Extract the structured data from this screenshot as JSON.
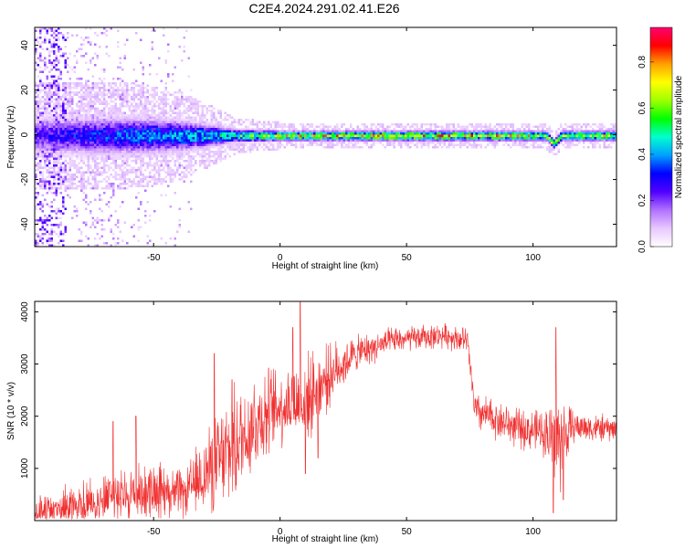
{
  "title": "C2E4.2024.291.02.41.E26",
  "chart_data": [
    {
      "type": "heatmap",
      "xlabel": "Height of straight line (km)",
      "ylabel": "Frequency (Hz)",
      "xlim": [
        -97,
        133
      ],
      "ylim": [
        -50,
        48
      ],
      "xticks": [
        -50,
        0,
        50,
        100
      ],
      "yticks": [
        -40,
        -20,
        0,
        20,
        40
      ],
      "ridge": {
        "center_freq_hz": 0,
        "spread_hz": [
          {
            "x": -97,
            "hz": 6
          },
          {
            "x": -60,
            "hz": 6
          },
          {
            "x": -40,
            "hz": 5
          },
          {
            "x": -25,
            "hz": 3
          },
          {
            "x": -18,
            "hz": 2
          },
          {
            "x": 0,
            "hz": 1.5
          },
          {
            "x": 100,
            "hz": 1.5
          },
          {
            "x": 133,
            "hz": 1.5
          }
        ],
        "peak_amplitude": [
          {
            "x": -97,
            "a": 0.3
          },
          {
            "x": -60,
            "a": 0.45
          },
          {
            "x": -40,
            "a": 0.5
          },
          {
            "x": -20,
            "a": 0.6
          },
          {
            "x": 0,
            "a": 0.85
          },
          {
            "x": 50,
            "a": 0.9
          },
          {
            "x": 100,
            "a": 0.85
          },
          {
            "x": 133,
            "a": 0.8
          }
        ],
        "disturbance": {
          "x": 108,
          "hz": -6
        }
      },
      "colorbar": {
        "label": "Normalized spectral amplitude",
        "range": [
          0,
          0.95
        ],
        "ticks": [
          "0.0",
          "0.2",
          "0.4",
          "0.6",
          "0.8"
        ],
        "tick_values": [
          0.0,
          0.2,
          0.4,
          0.6,
          0.8
        ],
        "colors": [
          "#ffffff",
          "#e8c8ff",
          "#b070ff",
          "#5000ff",
          "#0000ff",
          "#00a0ff",
          "#00ffd0",
          "#00ff00",
          "#a0ff00",
          "#ffff00",
          "#ffa000",
          "#ff0000",
          "#ff0070"
        ]
      }
    },
    {
      "type": "line",
      "xlabel": "Height of straight line (km)",
      "ylabel": "SNR (10 * v/v)",
      "xlim": [
        -97,
        133
      ],
      "ylim": [
        0,
        4200
      ],
      "xticks": [
        -50,
        0,
        50,
        100
      ],
      "yticks": [
        1000,
        2000,
        3000,
        4000
      ],
      "color": "#f03030",
      "series": [
        {
          "envelope": [
            {
              "x": -97,
              "base": 150,
              "amp": 400
            },
            {
              "x": -75,
              "base": 350,
              "amp": 600
            },
            {
              "x": -50,
              "base": 600,
              "amp": 650
            },
            {
              "x": -38,
              "base": 500,
              "amp": 550
            },
            {
              "x": -30,
              "base": 900,
              "amp": 900
            },
            {
              "x": -20,
              "base": 1300,
              "amp": 1300
            },
            {
              "x": -10,
              "base": 1900,
              "amp": 1200
            },
            {
              "x": 0,
              "base": 2200,
              "amp": 900
            },
            {
              "x": 10,
              "base": 2300,
              "amp": 1000
            },
            {
              "x": 20,
              "base": 2800,
              "amp": 700
            },
            {
              "x": 30,
              "base": 3200,
              "amp": 400
            },
            {
              "x": 45,
              "base": 3450,
              "amp": 300
            },
            {
              "x": 65,
              "base": 3550,
              "amp": 280
            },
            {
              "x": 74,
              "base": 3450,
              "amp": 300
            },
            {
              "x": 77,
              "base": 2100,
              "amp": 450
            },
            {
              "x": 95,
              "base": 1750,
              "amp": 450
            },
            {
              "x": 104,
              "base": 1700,
              "amp": 500
            },
            {
              "x": 110,
              "base": 1500,
              "amp": 1300
            },
            {
              "x": 116,
              "base": 1800,
              "amp": 350
            },
            {
              "x": 133,
              "base": 1750,
              "amp": 300
            }
          ],
          "spikes": [
            {
              "x": -66,
              "y": 1900
            },
            {
              "x": -57,
              "y": 2000
            },
            {
              "x": -26,
              "y": 3200
            },
            {
              "x": -19,
              "y": 2700
            },
            {
              "x": 5,
              "y": 3700
            },
            {
              "x": 8,
              "y": 4200
            },
            {
              "x": 10,
              "y": 900
            },
            {
              "x": 15,
              "y": 1200
            },
            {
              "x": 108,
              "y": 150
            },
            {
              "x": 109,
              "y": 3700
            },
            {
              "x": 112,
              "y": 400
            }
          ]
        }
      ]
    }
  ]
}
